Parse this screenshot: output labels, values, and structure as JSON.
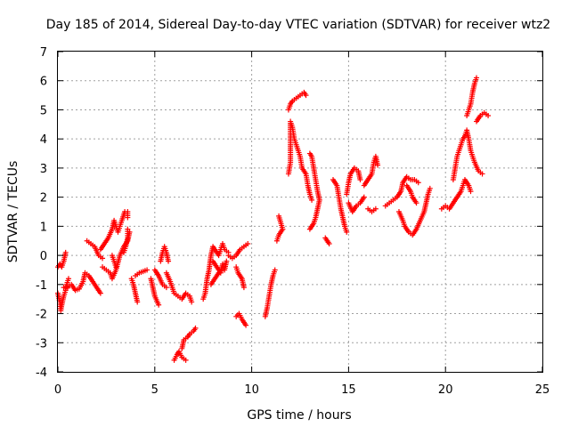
{
  "chart_data": {
    "type": "scatter",
    "title": "Day 185 of 2014, Sidereal Day-to-day VTEC variation (SDTVAR) for receiver wtz2",
    "xlabel": "GPS time / hours",
    "ylabel": "SDTVAR / TECUs",
    "xlim": [
      0,
      25
    ],
    "ylim": [
      -4,
      7
    ],
    "xticks": [
      "0",
      "5",
      "10",
      "15",
      "20",
      "25"
    ],
    "yticks": [
      "-4",
      "-3",
      "-2",
      "-1",
      "0",
      "1",
      "2",
      "3",
      "4",
      "5",
      "6",
      "7"
    ],
    "grid": true,
    "legend": "none",
    "marker": "+",
    "color": "#ff0000",
    "tracks": [
      [
        [
          0.0,
          -0.4
        ],
        [
          0.1,
          -0.3
        ],
        [
          0.2,
          -0.4
        ],
        [
          0.3,
          -0.2
        ],
        [
          0.4,
          0.1
        ]
      ],
      [
        [
          0.0,
          -1.3
        ],
        [
          0.1,
          -1.6
        ],
        [
          0.15,
          -1.9
        ],
        [
          0.2,
          -1.7
        ],
        [
          0.3,
          -1.4
        ],
        [
          0.4,
          -1.2
        ],
        [
          0.45,
          -1.0
        ],
        [
          0.55,
          -0.8
        ]
      ],
      [
        [
          0.3,
          -1.1
        ],
        [
          0.5,
          -1.1
        ],
        [
          0.7,
          -1.0
        ],
        [
          0.9,
          -1.2
        ],
        [
          1.1,
          -1.15
        ],
        [
          1.3,
          -0.9
        ],
        [
          1.4,
          -0.6
        ],
        [
          1.6,
          -0.7
        ],
        [
          1.8,
          -0.9
        ],
        [
          2.0,
          -1.1
        ],
        [
          2.2,
          -1.3
        ]
      ],
      [
        [
          1.5,
          0.5
        ],
        [
          1.7,
          0.4
        ],
        [
          1.9,
          0.3
        ],
        [
          2.1,
          0.0
        ],
        [
          2.3,
          -0.1
        ]
      ],
      [
        [
          2.2,
          0.2
        ],
        [
          2.4,
          0.4
        ],
        [
          2.6,
          0.6
        ],
        [
          2.8,
          0.9
        ],
        [
          2.9,
          1.2
        ],
        [
          3.1,
          0.8
        ],
        [
          3.3,
          1.2
        ],
        [
          3.45,
          1.5
        ],
        [
          3.6,
          1.5
        ],
        [
          3.6,
          1.3
        ]
      ],
      [
        [
          2.3,
          -0.4
        ],
        [
          2.5,
          -0.5
        ],
        [
          2.7,
          -0.6
        ],
        [
          2.8,
          -0.8
        ],
        [
          3.0,
          -0.5
        ],
        [
          3.2,
          0.0
        ],
        [
          3.4,
          0.3
        ],
        [
          3.6,
          0.5
        ],
        [
          3.7,
          0.8
        ]
      ],
      [
        [
          2.8,
          0.0
        ],
        [
          2.9,
          -0.2
        ],
        [
          3.0,
          -0.4
        ]
      ],
      [
        [
          3.6,
          0.9
        ],
        [
          3.6,
          0.6
        ],
        [
          3.5,
          0.3
        ],
        [
          3.4,
          0.1
        ]
      ],
      [
        [
          3.8,
          -0.8
        ],
        [
          3.9,
          -1.0
        ],
        [
          4.0,
          -1.3
        ],
        [
          4.1,
          -1.6
        ]
      ],
      [
        [
          4.0,
          -0.7
        ],
        [
          4.2,
          -0.6
        ],
        [
          4.4,
          -0.55
        ],
        [
          4.6,
          -0.5
        ]
      ],
      [
        [
          4.8,
          -0.8
        ],
        [
          4.9,
          -1.1
        ],
        [
          5.0,
          -1.4
        ],
        [
          5.2,
          -1.7
        ]
      ],
      [
        [
          5.0,
          -0.5
        ],
        [
          5.1,
          -0.6
        ],
        [
          5.2,
          -0.7
        ],
        [
          5.4,
          -1.0
        ],
        [
          5.6,
          -1.1
        ]
      ],
      [
        [
          5.3,
          -0.2
        ],
        [
          5.4,
          0.1
        ],
        [
          5.5,
          0.3
        ],
        [
          5.6,
          0.1
        ],
        [
          5.7,
          -0.2
        ]
      ],
      [
        [
          5.6,
          -0.6
        ],
        [
          5.8,
          -0.9
        ],
        [
          6.0,
          -1.3
        ],
        [
          6.2,
          -1.4
        ],
        [
          6.4,
          -1.5
        ],
        [
          6.6,
          -1.3
        ],
        [
          6.8,
          -1.4
        ],
        [
          6.9,
          -1.6
        ]
      ],
      [
        [
          6.0,
          -3.6
        ],
        [
          6.15,
          -3.4
        ],
        [
          6.25,
          -3.3
        ],
        [
          6.4,
          -3.5
        ],
        [
          6.6,
          -3.6
        ]
      ],
      [
        [
          6.4,
          -3.2
        ],
        [
          6.5,
          -2.9
        ],
        [
          6.7,
          -2.8
        ],
        [
          6.8,
          -2.7
        ],
        [
          7.0,
          -2.6
        ],
        [
          7.1,
          -2.5
        ]
      ],
      [
        [
          7.5,
          -1.5
        ],
        [
          7.6,
          -1.3
        ],
        [
          7.7,
          -0.8
        ],
        [
          7.8,
          -0.5
        ],
        [
          7.9,
          0.0
        ],
        [
          8.0,
          0.3
        ],
        [
          8.2,
          0.1
        ],
        [
          8.3,
          0.0
        ],
        [
          8.4,
          0.2
        ],
        [
          8.5,
          0.4
        ],
        [
          8.6,
          0.2
        ],
        [
          8.8,
          0.1
        ]
      ],
      [
        [
          8.0,
          -0.2
        ],
        [
          8.2,
          -0.4
        ],
        [
          8.4,
          -0.6
        ],
        [
          8.5,
          -0.3
        ],
        [
          8.6,
          -0.5
        ],
        [
          8.7,
          -0.2
        ]
      ],
      [
        [
          7.9,
          -1.0
        ],
        [
          8.1,
          -0.8
        ],
        [
          8.3,
          -0.6
        ]
      ],
      [
        [
          8.8,
          0.0
        ],
        [
          9.0,
          -0.1
        ],
        [
          9.2,
          0.0
        ],
        [
          9.4,
          0.2
        ],
        [
          9.6,
          0.3
        ],
        [
          9.8,
          0.4
        ]
      ],
      [
        [
          9.2,
          -0.4
        ],
        [
          9.3,
          -0.6
        ],
        [
          9.5,
          -0.8
        ],
        [
          9.6,
          -1.1
        ]
      ],
      [
        [
          9.2,
          -2.1
        ],
        [
          9.35,
          -2.0
        ],
        [
          9.5,
          -2.2
        ],
        [
          9.6,
          -2.3
        ],
        [
          9.7,
          -2.4
        ]
      ],
      [
        [
          10.7,
          -2.1
        ],
        [
          10.8,
          -1.8
        ],
        [
          10.9,
          -1.4
        ],
        [
          11.0,
          -1.0
        ],
        [
          11.1,
          -0.7
        ],
        [
          11.2,
          -0.5
        ]
      ],
      [
        [
          11.3,
          0.5
        ],
        [
          11.4,
          0.7
        ],
        [
          11.5,
          0.8
        ],
        [
          11.6,
          0.9
        ],
        [
          11.4,
          1.35
        ]
      ],
      [
        [
          11.9,
          2.8
        ],
        [
          12.0,
          3.2
        ],
        [
          12.0,
          4.6
        ],
        [
          12.1,
          4.4
        ],
        [
          12.2,
          4.0
        ],
        [
          12.3,
          3.8
        ],
        [
          12.5,
          3.4
        ],
        [
          12.6,
          3.0
        ],
        [
          12.8,
          2.8
        ],
        [
          12.9,
          2.4
        ],
        [
          13.0,
          2.1
        ],
        [
          13.1,
          1.9
        ]
      ],
      [
        [
          11.9,
          5.0
        ],
        [
          12.0,
          5.2
        ],
        [
          12.1,
          5.3
        ],
        [
          12.3,
          5.4
        ],
        [
          12.5,
          5.5
        ],
        [
          12.7,
          5.6
        ],
        [
          12.8,
          5.5
        ]
      ],
      [
        [
          13.0,
          3.5
        ],
        [
          13.1,
          3.4
        ],
        [
          13.2,
          3.0
        ],
        [
          13.3,
          2.6
        ],
        [
          13.4,
          2.2
        ],
        [
          13.5,
          1.9
        ],
        [
          13.4,
          1.6
        ],
        [
          13.3,
          1.3
        ],
        [
          13.2,
          1.1
        ],
        [
          13.0,
          0.9
        ]
      ],
      [
        [
          13.8,
          0.6
        ],
        [
          13.9,
          0.5
        ],
        [
          14.0,
          0.4
        ]
      ],
      [
        [
          14.2,
          2.6
        ],
        [
          14.4,
          2.4
        ],
        [
          14.5,
          2.0
        ],
        [
          14.6,
          1.6
        ],
        [
          14.7,
          1.3
        ],
        [
          14.8,
          1.0
        ],
        [
          14.9,
          0.8
        ]
      ],
      [
        [
          14.9,
          2.1
        ],
        [
          15.0,
          2.5
        ],
        [
          15.1,
          2.8
        ],
        [
          15.3,
          3.0
        ],
        [
          15.5,
          2.9
        ],
        [
          15.6,
          2.6
        ]
      ],
      [
        [
          15.0,
          1.8
        ],
        [
          15.2,
          1.5
        ],
        [
          15.4,
          1.7
        ],
        [
          15.6,
          1.8
        ],
        [
          15.8,
          2.0
        ]
      ],
      [
        [
          15.8,
          2.4
        ],
        [
          16.0,
          2.6
        ],
        [
          16.2,
          2.8
        ],
        [
          16.3,
          3.2
        ],
        [
          16.4,
          3.4
        ],
        [
          16.5,
          3.1
        ]
      ],
      [
        [
          16.0,
          1.6
        ],
        [
          16.2,
          1.5
        ],
        [
          16.4,
          1.6
        ]
      ],
      [
        [
          16.9,
          1.7
        ],
        [
          17.1,
          1.8
        ],
        [
          17.3,
          1.9
        ],
        [
          17.5,
          2.0
        ],
        [
          17.7,
          2.2
        ],
        [
          17.8,
          2.5
        ],
        [
          18.0,
          2.7
        ],
        [
          18.2,
          2.6
        ],
        [
          18.4,
          2.6
        ],
        [
          18.6,
          2.5
        ]
      ],
      [
        [
          17.6,
          1.5
        ],
        [
          17.8,
          1.2
        ],
        [
          17.9,
          1.0
        ],
        [
          18.1,
          0.8
        ],
        [
          18.3,
          0.7
        ],
        [
          18.5,
          0.9
        ],
        [
          18.7,
          1.2
        ],
        [
          18.9,
          1.5
        ],
        [
          19.0,
          1.8
        ],
        [
          19.1,
          2.1
        ],
        [
          19.2,
          2.3
        ]
      ],
      [
        [
          18.0,
          2.4
        ],
        [
          18.2,
          2.2
        ],
        [
          18.3,
          2.0
        ],
        [
          18.5,
          1.8
        ]
      ],
      [
        [
          19.8,
          1.6
        ],
        [
          20.0,
          1.7
        ],
        [
          20.2,
          1.6
        ],
        [
          20.4,
          1.8
        ],
        [
          20.6,
          2.0
        ],
        [
          20.8,
          2.2
        ],
        [
          21.0,
          2.6
        ],
        [
          21.2,
          2.4
        ],
        [
          21.3,
          2.2
        ]
      ],
      [
        [
          20.4,
          2.6
        ],
        [
          20.5,
          3.0
        ],
        [
          20.6,
          3.4
        ],
        [
          20.7,
          3.6
        ],
        [
          20.8,
          3.8
        ],
        [
          20.9,
          4.0
        ],
        [
          21.0,
          4.1
        ],
        [
          21.1,
          4.3
        ],
        [
          21.2,
          4.0
        ],
        [
          21.3,
          3.6
        ],
        [
          21.5,
          3.2
        ],
        [
          21.7,
          2.9
        ],
        [
          21.9,
          2.8
        ]
      ],
      [
        [
          21.1,
          4.8
        ],
        [
          21.3,
          5.2
        ],
        [
          21.4,
          5.6
        ],
        [
          21.5,
          5.9
        ],
        [
          21.6,
          6.1
        ]
      ],
      [
        [
          21.6,
          4.6
        ],
        [
          21.8,
          4.8
        ],
        [
          22.0,
          4.9
        ],
        [
          22.2,
          4.8
        ]
      ]
    ]
  }
}
